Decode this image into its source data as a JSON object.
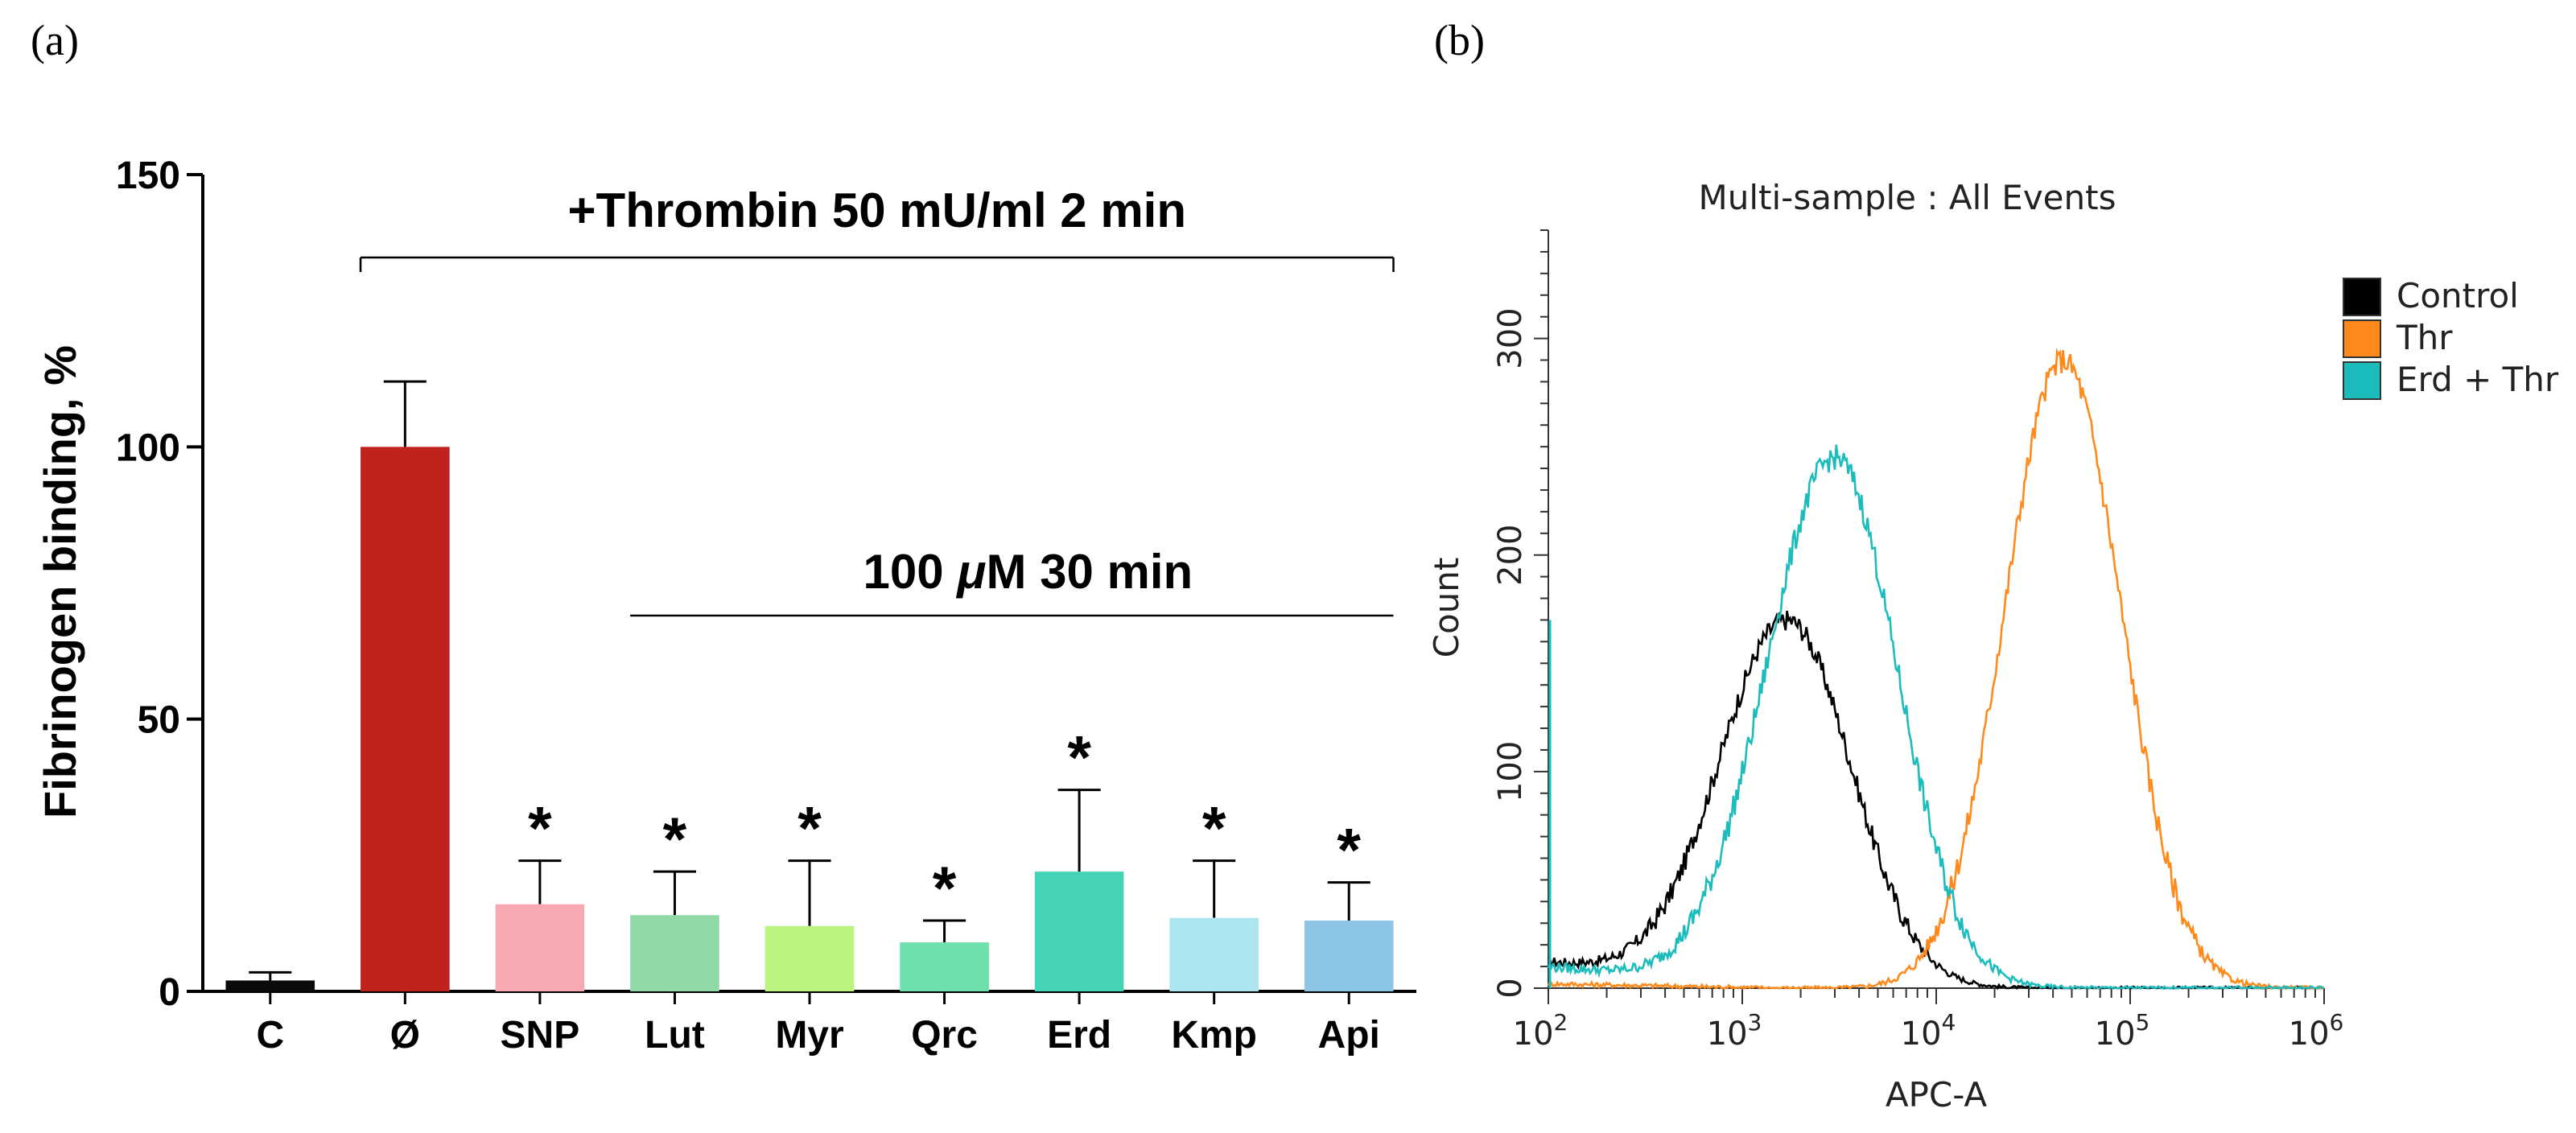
{
  "panels": {
    "a": "(a)",
    "b": "(b)"
  },
  "chart_data": [
    {
      "type": "bar",
      "title": "",
      "ylabel": "Fibrinogen binding, %",
      "xlabel": "",
      "ylim": [
        0,
        150
      ],
      "yticks": [
        0,
        50,
        100,
        150
      ],
      "categories": [
        "C",
        "Ø",
        "SNP",
        "Lut",
        "Myr",
        "Qrc",
        "Erd",
        "Kmp",
        "Api"
      ],
      "values": [
        2,
        100,
        16,
        14,
        12,
        9,
        22,
        13.5,
        13
      ],
      "errors": [
        1.5,
        12,
        8,
        8,
        12,
        4,
        15,
        10.5,
        7
      ],
      "colors": [
        "#0a0a0a",
        "#c0231e",
        "#f7a8b3",
        "#90d8a6",
        "#b9f57e",
        "#6ee0ac",
        "#45d3b6",
        "#ade5ef",
        "#8dc5e4"
      ],
      "significant": [
        "",
        "",
        "*",
        "*",
        "*",
        "*",
        "*",
        "*",
        "*"
      ],
      "annotations": {
        "thrombin": {
          "text": "+Thrombin 50 mU/ml 2 min",
          "from": "Ø",
          "to": "Api"
        },
        "treatment": {
          "text_prefix": "100 ",
          "text_mu": "μ",
          "text_suffix": "M 30 min",
          "from": "Lut",
          "to": "Api"
        }
      }
    },
    {
      "type": "line",
      "title": "Multi-sample : All Events",
      "xlabel": "APC-A",
      "ylabel": "Count",
      "xscale": "log",
      "xlim": [
        100,
        1000000
      ],
      "xticks": [
        {
          "base": "10",
          "exp": "2"
        },
        {
          "base": "10",
          "exp": "3"
        },
        {
          "base": "10",
          "exp": "4"
        },
        {
          "base": "10",
          "exp": "5"
        },
        {
          "base": "10",
          "exp": "6"
        }
      ],
      "ylim": [
        0,
        350
      ],
      "yticks": [
        "0",
        "100",
        "200",
        "300"
      ],
      "legend_position": "right",
      "series": [
        {
          "name": "Control",
          "color": "#000000",
          "peak_x": 1700,
          "peak_y": 170,
          "width": 0.33,
          "skew": 1.05,
          "base": 12,
          "noise": 10
        },
        {
          "name": "Thr",
          "color": "#ff8a1c",
          "peak_x": 45000,
          "peak_y": 290,
          "width": 0.3,
          "skew": 1.0,
          "base": 2,
          "noise": 12
        },
        {
          "name": "Erd + Thr",
          "color": "#1cbcbc",
          "peak_x": 3000,
          "peak_y": 245,
          "width": 0.32,
          "skew": 1.1,
          "base": 10,
          "noise": 12
        }
      ]
    }
  ]
}
